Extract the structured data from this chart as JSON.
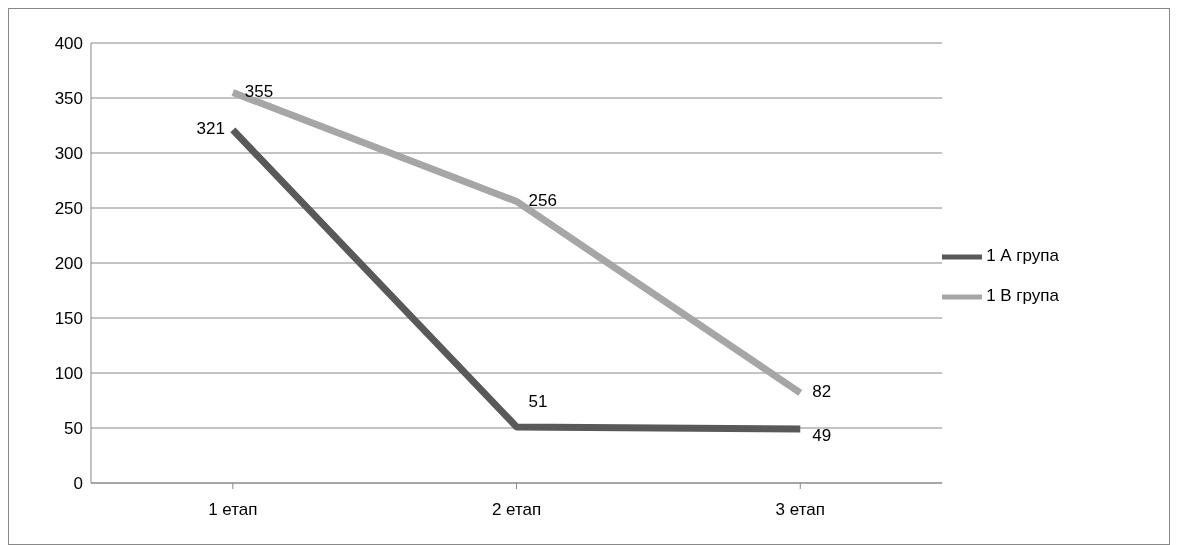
{
  "chart_data": {
    "type": "line",
    "categories": [
      "1 етап",
      "2 етап",
      "3 етап"
    ],
    "series": [
      {
        "name": "1 А група",
        "color": "#595959",
        "values": [
          321,
          51,
          49
        ]
      },
      {
        "name": "1 В група",
        "color": "#a6a6a6",
        "values": [
          355,
          256,
          82
        ]
      }
    ],
    "ylim": [
      0,
      400
    ],
    "yticks": [
      0,
      50,
      100,
      150,
      200,
      250,
      300,
      350,
      400
    ],
    "grid": "y",
    "legend": "right",
    "data_labels": true,
    "marker": "none",
    "line_style": "solid"
  }
}
